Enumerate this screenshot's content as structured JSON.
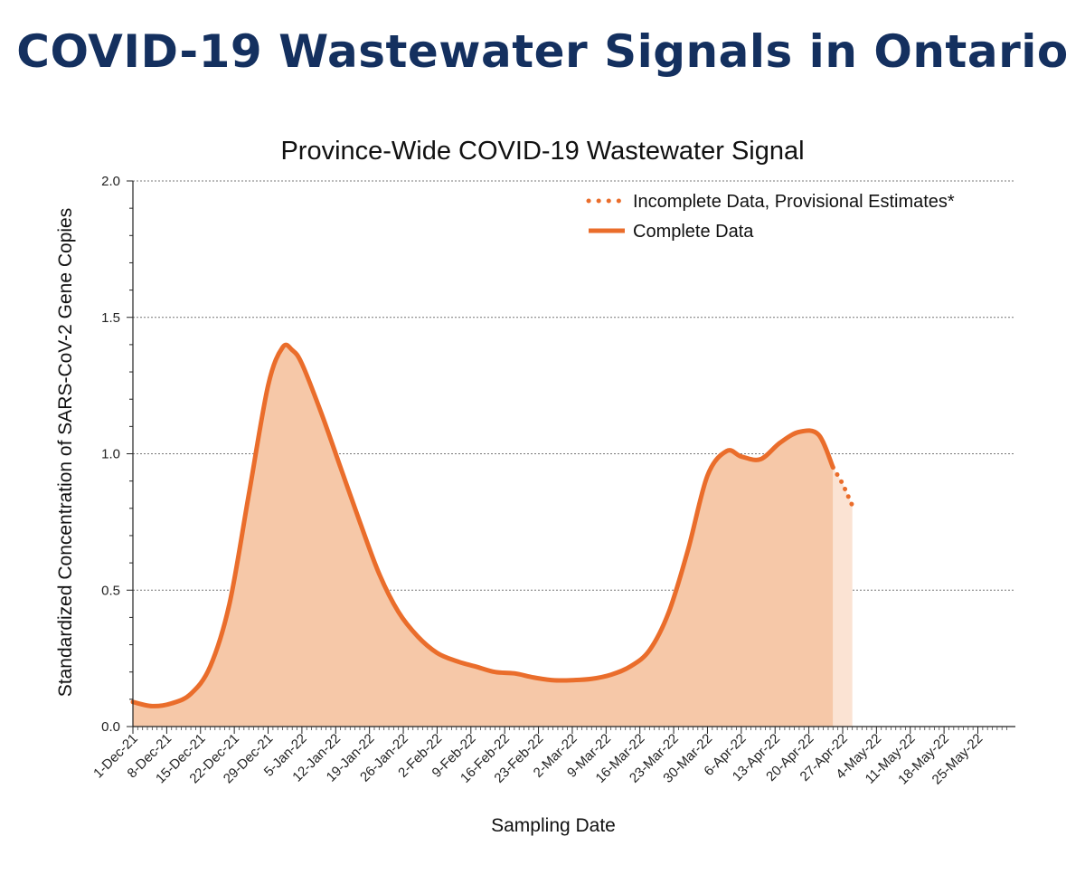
{
  "header": {
    "title": "COVID-19 Wastewater Signals in Ontario"
  },
  "chart_data": {
    "type": "area",
    "title": "Province-Wide COVID-19 Wastewater Signal",
    "xlabel": "Sampling Date",
    "ylabel": "Standardized Concentration of SARS-CoV-2 Gene Copies",
    "ylim": [
      0,
      2.0
    ],
    "yticks": [
      "0.0",
      "0.5",
      "1.0",
      "1.5",
      "2.0"
    ],
    "xlim": [
      "2021-12-01",
      "2022-05-31"
    ],
    "x_tick_labels": [
      "1-Dec-21",
      "8-Dec-21",
      "15-Dec-21",
      "22-Dec-21",
      "29-Dec-21",
      "5-Jan-22",
      "12-Jan-22",
      "19-Jan-22",
      "26-Jan-22",
      "2-Feb-22",
      "9-Feb-22",
      "16-Feb-22",
      "23-Feb-22",
      "2-Mar-22",
      "9-Mar-22",
      "16-Mar-22",
      "23-Mar-22",
      "30-Mar-22",
      "6-Apr-22",
      "13-Apr-22",
      "20-Apr-22",
      "27-Apr-22",
      "4-May-22",
      "11-May-22",
      "18-May-22",
      "25-May-22"
    ],
    "grid": true,
    "legend_position": "top-right",
    "fill_color": "#f6c8a8",
    "fill_color_provisional": "#fbe3d3",
    "line_color": "#ea6d2b",
    "series": [
      {
        "name": "Complete Data",
        "style": "solid",
        "x": [
          "2021-12-01",
          "2021-12-05",
          "2021-12-09",
          "2021-12-13",
          "2021-12-17",
          "2021-12-21",
          "2021-12-25",
          "2021-12-29",
          "2022-01-01",
          "2022-01-03",
          "2022-01-05",
          "2022-01-09",
          "2022-01-13",
          "2022-01-17",
          "2022-01-21",
          "2022-01-25",
          "2022-01-29",
          "2022-02-02",
          "2022-02-06",
          "2022-02-10",
          "2022-02-14",
          "2022-02-18",
          "2022-02-22",
          "2022-02-26",
          "2022-03-02",
          "2022-03-06",
          "2022-03-10",
          "2022-03-14",
          "2022-03-18",
          "2022-03-22",
          "2022-03-26",
          "2022-03-30",
          "2022-04-03",
          "2022-04-06",
          "2022-04-10",
          "2022-04-14",
          "2022-04-18",
          "2022-04-22",
          "2022-04-25"
        ],
        "values": [
          0.09,
          0.075,
          0.085,
          0.12,
          0.22,
          0.45,
          0.85,
          1.25,
          1.39,
          1.38,
          1.33,
          1.15,
          0.95,
          0.75,
          0.56,
          0.42,
          0.33,
          0.27,
          0.24,
          0.22,
          0.2,
          0.195,
          0.18,
          0.17,
          0.17,
          0.175,
          0.19,
          0.22,
          0.28,
          0.42,
          0.65,
          0.92,
          1.01,
          0.99,
          0.98,
          1.04,
          1.08,
          1.07,
          0.95
        ]
      },
      {
        "name": "Incomplete Data, Provisional Estimates*",
        "style": "dotted",
        "x": [
          "2022-04-25",
          "2022-04-26",
          "2022-04-27",
          "2022-04-28",
          "2022-04-29"
        ],
        "values": [
          0.95,
          0.92,
          0.89,
          0.85,
          0.81
        ]
      }
    ]
  }
}
